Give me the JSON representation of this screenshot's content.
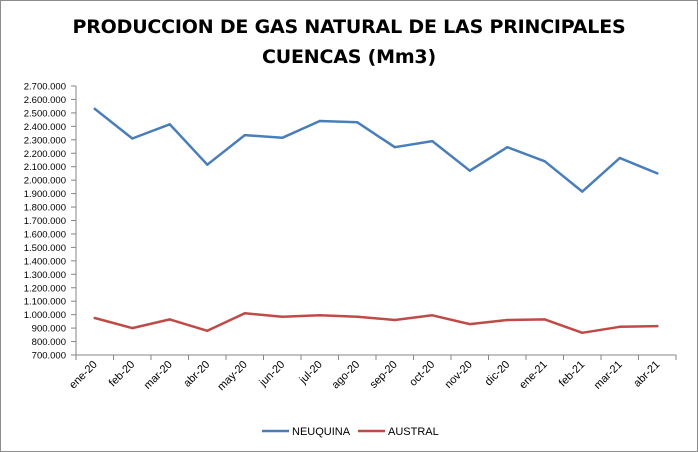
{
  "chart_data": {
    "type": "line",
    "title_lines": [
      "PRODUCCION DE GAS NATURAL DE LAS PRINCIPALES",
      "CUENCAS (Mm3)"
    ],
    "xlabel": "",
    "ylabel": "",
    "categories": [
      "ene-20",
      "feb-20",
      "mar-20",
      "abr-20",
      "may-20",
      "jun-20",
      "jul-20",
      "ago-20",
      "sep-20",
      "oct-20",
      "nov-20",
      "dic-20",
      "ene-21",
      "feb-21",
      "mar-21",
      "abr-21"
    ],
    "yticks": [
      "700.000",
      "800.000",
      "900.000",
      "1.000.000",
      "1.100.000",
      "1.200.000",
      "1.300.000",
      "1.400.000",
      "1.500.000",
      "1.600.000",
      "1.700.000",
      "1.800.000",
      "1.900.000",
      "2.000.000",
      "2.100.000",
      "2.200.000",
      "2.300.000",
      "2.400.000",
      "2.500.000",
      "2.600.000",
      "2.700.000"
    ],
    "ylim": [
      700000,
      2700000
    ],
    "grid": false,
    "legend": "bottom",
    "series": [
      {
        "name": "NEUQUINA",
        "color": "#4a7ebb",
        "values": [
          2530000,
          2310000,
          2415000,
          2115000,
          2335000,
          2315000,
          2440000,
          2430000,
          2245000,
          2290000,
          2070000,
          2245000,
          2140000,
          1915000,
          2165000,
          2050000
        ]
      },
      {
        "name": "AUSTRAL",
        "color": "#be4b48",
        "values": [
          975000,
          900000,
          965000,
          880000,
          1010000,
          985000,
          995000,
          985000,
          960000,
          995000,
          930000,
          960000,
          965000,
          865000,
          910000,
          915000
        ]
      }
    ]
  }
}
